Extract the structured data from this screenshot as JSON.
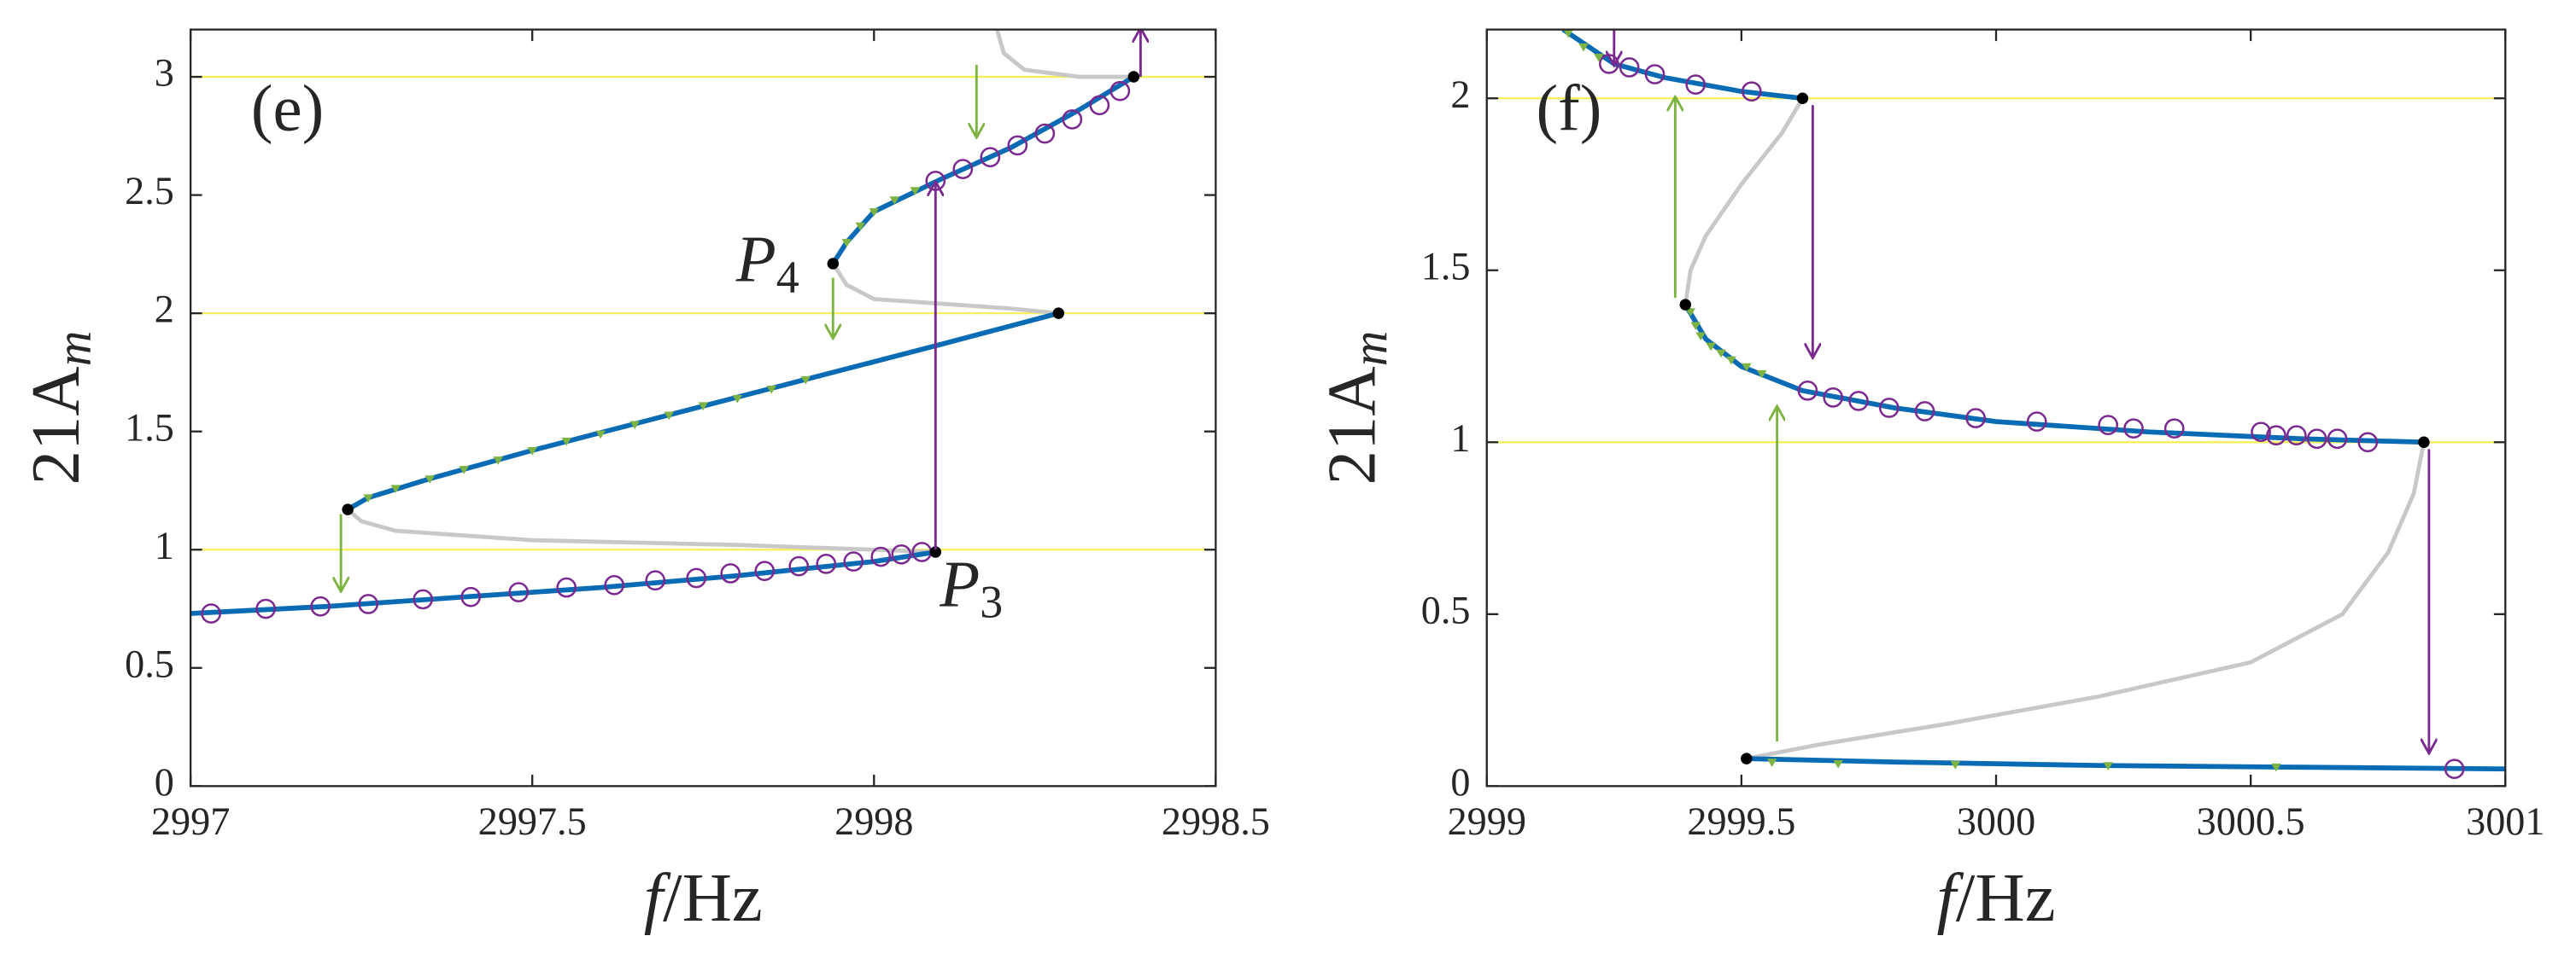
{
  "chart_data": [
    {
      "type": "line",
      "panel": "(e)",
      "xlim": [
        2997,
        2998.5
      ],
      "xticks": [
        2997,
        2997.5,
        2998,
        2998.5
      ],
      "ylim": [
        0,
        3.2
      ],
      "yticks": [
        0,
        0.5,
        1,
        1.5,
        2,
        2.5,
        3
      ],
      "xlabel": {
        "italic": "f",
        "text": "/Hz"
      },
      "ylabel": {
        "text": "21A",
        "sub": "m"
      },
      "hlines": [
        1,
        2,
        3
      ],
      "hline_color": "#f5f05a",
      "annotations": [
        {
          "text": "P",
          "sub": "4"
        },
        {
          "text": "P",
          "sub": "3"
        }
      ],
      "series": [
        {
          "style": "line",
          "color": "#c8c8c8",
          "x": [
            2998.09,
            2998.0,
            2997.8,
            2997.5,
            2997.3,
            2997.25,
            2997.23
          ],
          "values": [
            0.99,
            1.0,
            1.02,
            1.04,
            1.08,
            1.12,
            1.17
          ]
        },
        {
          "style": "line",
          "color": "#c8c8c8",
          "x": [
            2998.27,
            2998.2,
            2998.1,
            2998.0,
            2997.96,
            2997.94
          ],
          "values": [
            2.0,
            2.02,
            2.04,
            2.06,
            2.12,
            2.21
          ]
        },
        {
          "style": "line",
          "color": "#c8c8c8",
          "x": [
            2998.38,
            2998.3,
            2998.22,
            2998.19,
            2998.18
          ],
          "values": [
            3.0,
            3.0,
            3.03,
            3.1,
            3.2
          ]
        },
        {
          "style": "line",
          "color": "#0a6bb5",
          "x": [
            2997,
            2997.2,
            2997.4,
            2997.6,
            2997.8,
            2998,
            2998.09
          ],
          "values": [
            0.73,
            0.76,
            0.8,
            0.84,
            0.89,
            0.95,
            0.99
          ]
        },
        {
          "style": "line",
          "color": "#0a6bb5",
          "x": [
            2997.23,
            2997.26,
            2997.35,
            2997.5,
            2997.7,
            2997.9,
            2998.1,
            2998.27
          ],
          "values": [
            1.17,
            1.22,
            1.3,
            1.42,
            1.57,
            1.72,
            1.87,
            2.0
          ]
        },
        {
          "style": "line",
          "color": "#0a6bb5",
          "x": [
            2997.94,
            2997.96,
            2998.0,
            2998.1,
            2998.2,
            2998.3,
            2998.38
          ],
          "values": [
            2.21,
            2.3,
            2.43,
            2.57,
            2.7,
            2.86,
            3.0
          ]
        },
        {
          "style": "circle",
          "color": "#7a2a8e",
          "x": [
            2997.03,
            2997.11,
            2997.19,
            2997.26,
            2997.34,
            2997.41,
            2997.48,
            2997.55,
            2997.62,
            2997.68,
            2997.74,
            2997.79,
            2997.84,
            2997.89,
            2997.93,
            2997.97,
            2998.01,
            2998.04,
            2998.07
          ],
          "values": [
            0.73,
            0.75,
            0.76,
            0.77,
            0.79,
            0.8,
            0.82,
            0.84,
            0.85,
            0.87,
            0.88,
            0.9,
            0.91,
            0.93,
            0.94,
            0.95,
            0.97,
            0.98,
            0.99
          ]
        },
        {
          "style": "circle",
          "color": "#7a2a8e",
          "x": [
            2998.09,
            2998.13,
            2998.17,
            2998.21,
            2998.25,
            2998.29,
            2998.33,
            2998.36
          ],
          "values": [
            2.56,
            2.61,
            2.66,
            2.71,
            2.76,
            2.82,
            2.88,
            2.94
          ]
        },
        {
          "style": "triangle",
          "color": "#7cb342",
          "x": [
            2997.26,
            2997.3,
            2997.35,
            2997.4,
            2997.45,
            2997.5,
            2997.55,
            2997.6,
            2997.65,
            2997.7,
            2997.75,
            2997.8,
            2997.85,
            2997.9
          ],
          "values": [
            1.22,
            1.26,
            1.3,
            1.34,
            1.38,
            1.42,
            1.46,
            1.49,
            1.53,
            1.57,
            1.61,
            1.64,
            1.68,
            1.72
          ]
        },
        {
          "style": "triangle",
          "color": "#7cb342",
          "x": [
            2997.96,
            2997.98,
            2998.0,
            2998.03,
            2998.06
          ],
          "values": [
            2.3,
            2.37,
            2.43,
            2.48,
            2.52
          ]
        },
        {
          "style": "dot",
          "color": "#000000",
          "x": [
            2997.23,
            2998.09,
            2997.94,
            2998.27,
            2998.38
          ],
          "values": [
            1.17,
            0.99,
            2.21,
            2.0,
            3.0
          ]
        }
      ],
      "arrows": [
        {
          "color": "#7cb342",
          "x": [
            2997.22,
            2997.22
          ],
          "y": [
            1.15,
            0.83
          ]
        },
        {
          "color": "#7cb342",
          "x": [
            2997.94,
            2997.94
          ],
          "y": [
            2.15,
            1.9
          ]
        },
        {
          "color": "#7cb342",
          "x": [
            2998.15,
            2998.15
          ],
          "y": [
            3.05,
            2.75
          ]
        },
        {
          "color": "#7a2a8e",
          "x": [
            2998.09,
            2998.09
          ],
          "y": [
            1.0,
            2.55
          ]
        },
        {
          "color": "#7a2a8e",
          "x": [
            2998.39,
            2998.39
          ],
          "y": [
            3.0,
            3.2
          ]
        }
      ]
    },
    {
      "type": "line",
      "panel": "(f)",
      "xlim": [
        2999,
        3001
      ],
      "xticks": [
        2999,
        2999.5,
        3000,
        3000.5,
        3001
      ],
      "ylim": [
        0,
        2.2
      ],
      "yticks": [
        0,
        0.5,
        1,
        1.5,
        2
      ],
      "xlabel": {
        "italic": "f",
        "text": "/Hz"
      },
      "ylabel": {
        "text": "21A",
        "sub": "m"
      },
      "hlines": [
        1,
        2
      ],
      "hline_color": "#f5f05a",
      "annotations": [],
      "series": [
        {
          "style": "line",
          "color": "#c8c8c8",
          "x": [
            2999.62,
            2999.58,
            2999.5,
            2999.43,
            2999.4,
            2999.39
          ],
          "values": [
            2.0,
            1.9,
            1.75,
            1.6,
            1.5,
            1.4
          ]
        },
        {
          "style": "line",
          "color": "#c8c8c8",
          "x": [
            3000.84,
            3000.82,
            3000.77,
            3000.68,
            3000.5,
            3000.2,
            2999.9,
            2999.65,
            2999.51
          ],
          "values": [
            1.0,
            0.85,
            0.68,
            0.5,
            0.36,
            0.26,
            0.18,
            0.12,
            0.08
          ]
        },
        {
          "style": "line",
          "color": "#0a6bb5",
          "x": [
            2999.15,
            2999.25,
            2999.35,
            2999.5,
            2999.62
          ],
          "values": [
            2.2,
            2.1,
            2.06,
            2.02,
            2.0
          ]
        },
        {
          "style": "line",
          "color": "#0a6bb5",
          "x": [
            2999.39,
            2999.43,
            2999.5,
            2999.62,
            2999.8,
            3000,
            3000.3,
            3000.6,
            3000.84
          ],
          "values": [
            1.4,
            1.3,
            1.22,
            1.15,
            1.1,
            1.06,
            1.03,
            1.01,
            1.0
          ]
        },
        {
          "style": "line",
          "color": "#0a6bb5",
          "x": [
            2999.51,
            2999.8,
            3000.2,
            3000.6,
            3001
          ],
          "values": [
            0.08,
            0.07,
            0.06,
            0.055,
            0.05
          ]
        },
        {
          "style": "circle",
          "color": "#7a2a8e",
          "x": [
            2999.24,
            2999.28,
            2999.33,
            2999.41,
            2999.52
          ],
          "values": [
            2.1,
            2.09,
            2.07,
            2.04,
            2.02
          ]
        },
        {
          "style": "circle",
          "color": "#7a2a8e",
          "x": [
            2999.63,
            2999.68,
            2999.73,
            2999.79,
            2999.86,
            2999.96,
            3000.08,
            3000.22,
            3000.27,
            3000.35,
            3000.52,
            3000.55,
            3000.59,
            3000.63,
            3000.67,
            3000.73,
            3000.9
          ],
          "values": [
            1.15,
            1.13,
            1.12,
            1.1,
            1.09,
            1.07,
            1.06,
            1.05,
            1.04,
            1.04,
            1.03,
            1.02,
            1.02,
            1.01,
            1.01,
            1.0,
            0.05
          ]
        },
        {
          "style": "triangle",
          "color": "#7cb342",
          "x": [
            2999.16,
            2999.19,
            2999.22,
            2999.4,
            2999.41,
            2999.42,
            2999.44,
            2999.46,
            2999.48,
            2999.51,
            2999.54,
            2999.56,
            2999.69,
            2999.92,
            3000.22,
            3000.55
          ],
          "values": [
            2.19,
            2.15,
            2.12,
            1.38,
            1.34,
            1.31,
            1.28,
            1.26,
            1.24,
            1.22,
            1.2,
            0.07,
            0.066,
            0.063,
            0.06,
            0.056
          ]
        },
        {
          "style": "dot",
          "color": "#000000",
          "x": [
            2999.62,
            2999.39,
            3000.84,
            2999.51
          ],
          "values": [
            2.0,
            1.4,
            1.0,
            0.08
          ]
        }
      ],
      "arrows": [
        {
          "color": "#7a2a8e",
          "x": [
            2999.25,
            2999.25
          ],
          "y": [
            2.2,
            2.1
          ]
        },
        {
          "color": "#7cb342",
          "x": [
            2999.37,
            2999.37
          ],
          "y": [
            1.42,
            2.0
          ]
        },
        {
          "color": "#7a2a8e",
          "x": [
            2999.64,
            2999.64
          ],
          "y": [
            1.98,
            1.25
          ]
        },
        {
          "color": "#7cb342",
          "x": [
            2999.57,
            2999.57
          ],
          "y": [
            0.13,
            1.1
          ]
        },
        {
          "color": "#7a2a8e",
          "x": [
            3000.85,
            3000.85
          ],
          "y": [
            0.98,
            0.1
          ]
        }
      ]
    }
  ]
}
